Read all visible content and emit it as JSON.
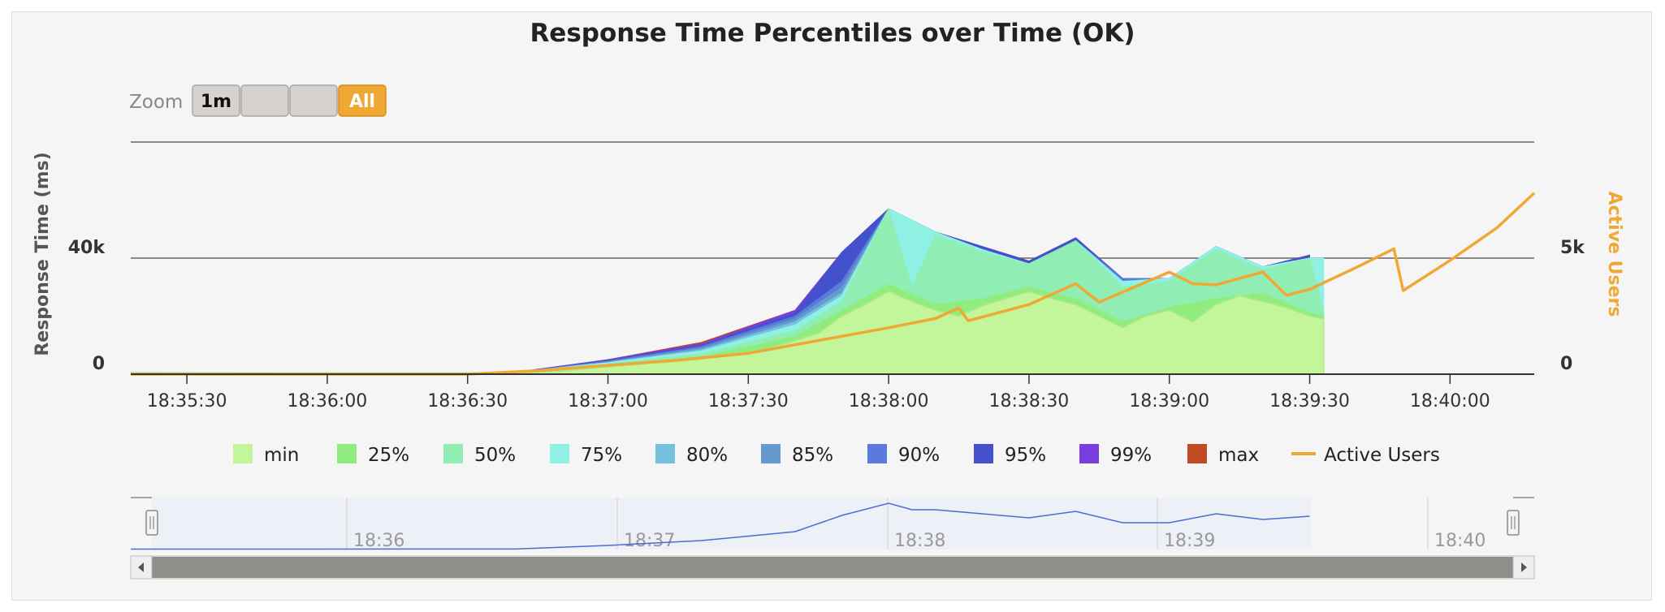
{
  "chart_data": {
    "type": "area",
    "title": "Response Time Percentiles over Time (OK)",
    "ylabel_left": "Response Time (ms)",
    "ylabel_right": "Active Users",
    "y_left_ticks": [
      {
        "value": 0,
        "label": "0"
      },
      {
        "value": 40000,
        "label": "40k"
      }
    ],
    "y_right_ticks": [
      {
        "value": 0,
        "label": "0"
      },
      {
        "value": 5000,
        "label": "5k"
      }
    ],
    "y_left_range": [
      0,
      80000
    ],
    "y_right_range": [
      0,
      10000
    ],
    "x_range": [
      "18:35:18",
      "18:40:18"
    ],
    "x_ticks": [
      "18:35:30",
      "18:36:00",
      "18:36:30",
      "18:37:00",
      "18:37:30",
      "18:38:00",
      "18:38:30",
      "18:39:00",
      "18:39:30",
      "18:40:00"
    ],
    "grid": "horizontal",
    "legend_position": "bottom",
    "series": [
      {
        "name": "min",
        "color": "#c3f59a",
        "points": [
          [
            "18:35:18",
            300
          ],
          [
            "18:36:40",
            300
          ],
          [
            "18:36:50",
            1000
          ],
          [
            "18:37:00",
            2500
          ],
          [
            "18:37:10",
            3800
          ],
          [
            "18:37:20",
            5200
          ],
          [
            "18:37:30",
            7500
          ],
          [
            "18:37:35",
            9000
          ],
          [
            "18:37:40",
            11500
          ],
          [
            "18:37:45",
            14000
          ],
          [
            "18:37:50",
            20000
          ],
          [
            "18:37:55",
            24000
          ],
          [
            "18:38:00",
            28500
          ],
          [
            "18:38:05",
            25000
          ],
          [
            "18:38:10",
            22000
          ],
          [
            "18:38:15",
            20000
          ],
          [
            "18:38:20",
            23500
          ],
          [
            "18:38:25",
            26000
          ],
          [
            "18:38:30",
            28500
          ],
          [
            "18:38:35",
            26000
          ],
          [
            "18:38:40",
            24000
          ],
          [
            "18:38:45",
            20000
          ],
          [
            "18:38:50",
            16000
          ],
          [
            "18:38:55",
            20000
          ],
          [
            "18:39:00",
            22000
          ],
          [
            "18:39:05",
            18000
          ],
          [
            "18:39:10",
            24000
          ],
          [
            "18:39:15",
            27000
          ],
          [
            "18:39:20",
            25000
          ],
          [
            "18:39:25",
            23000
          ],
          [
            "18:39:30",
            20000
          ],
          [
            "18:39:33",
            19000
          ],
          [
            "18:39:33",
            0
          ]
        ]
      },
      {
        "name": "25%",
        "color": "#90ed7d",
        "points": [
          [
            "18:35:18",
            400
          ],
          [
            "18:36:40",
            400
          ],
          [
            "18:37:00",
            3000
          ],
          [
            "18:37:20",
            6000
          ],
          [
            "18:37:40",
            13000
          ],
          [
            "18:37:50",
            22000
          ],
          [
            "18:38:00",
            31000
          ],
          [
            "18:38:10",
            24000
          ],
          [
            "18:38:20",
            26000
          ],
          [
            "18:38:30",
            30000
          ],
          [
            "18:38:40",
            26000
          ],
          [
            "18:38:50",
            18000
          ],
          [
            "18:39:00",
            23000
          ],
          [
            "18:39:10",
            26000
          ],
          [
            "18:39:20",
            28000
          ],
          [
            "18:39:30",
            21000
          ],
          [
            "18:39:33",
            20000
          ]
        ]
      },
      {
        "name": "50%",
        "color": "#90eeb4",
        "points": [
          [
            "18:35:18",
            500
          ],
          [
            "18:36:40",
            500
          ],
          [
            "18:37:00",
            3500
          ],
          [
            "18:37:20",
            7000
          ],
          [
            "18:37:40",
            15000
          ],
          [
            "18:37:50",
            25000
          ],
          [
            "18:38:00",
            57000
          ],
          [
            "18:38:05",
            30000
          ],
          [
            "18:38:10",
            48000
          ],
          [
            "18:38:20",
            42000
          ],
          [
            "18:38:30",
            38000
          ],
          [
            "18:38:40",
            46000
          ],
          [
            "18:38:50",
            30000
          ],
          [
            "18:39:00",
            32000
          ],
          [
            "18:39:10",
            43000
          ],
          [
            "18:39:20",
            36000
          ],
          [
            "18:39:30",
            40000
          ],
          [
            "18:39:33",
            22000
          ]
        ]
      },
      {
        "name": "75%",
        "color": "#8ff0e4",
        "points": [
          [
            "18:35:18",
            500
          ],
          [
            "18:36:40",
            600
          ],
          [
            "18:37:00",
            4000
          ],
          [
            "18:37:20",
            8000
          ],
          [
            "18:37:40",
            17000
          ],
          [
            "18:37:50",
            27000
          ],
          [
            "18:38:00",
            57000
          ],
          [
            "18:38:10",
            49000
          ],
          [
            "18:38:20",
            43000
          ],
          [
            "18:38:30",
            38000
          ],
          [
            "18:38:40",
            46000
          ],
          [
            "18:38:50",
            32000
          ],
          [
            "18:39:00",
            33000
          ],
          [
            "18:39:10",
            44000
          ],
          [
            "18:39:20",
            37000
          ],
          [
            "18:39:30",
            40000
          ],
          [
            "18:39:33",
            40000
          ]
        ]
      },
      {
        "name": "80%",
        "color": "#74c0de",
        "points": [
          [
            "18:35:18",
            500
          ],
          [
            "18:36:40",
            600
          ],
          [
            "18:37:00",
            4000
          ],
          [
            "18:37:20",
            8500
          ],
          [
            "18:37:40",
            18000
          ],
          [
            "18:37:50",
            28000
          ],
          [
            "18:38:00",
            57000
          ],
          [
            "18:38:10",
            49000
          ],
          [
            "18:38:20",
            43000
          ],
          [
            "18:38:30",
            38000
          ],
          [
            "18:38:40",
            46000
          ],
          [
            "18:38:50",
            32000
          ],
          [
            "18:39:00",
            33000
          ],
          [
            "18:39:10",
            44000
          ],
          [
            "18:39:20",
            37000
          ],
          [
            "18:39:30",
            40000
          ]
        ]
      },
      {
        "name": "85%",
        "color": "#6699cc",
        "points": [
          [
            "18:35:18",
            500
          ],
          [
            "18:36:40",
            600
          ],
          [
            "18:37:00",
            4200
          ],
          [
            "18:37:20",
            9000
          ],
          [
            "18:37:40",
            19000
          ],
          [
            "18:37:50",
            30000
          ],
          [
            "18:38:00",
            57000
          ],
          [
            "18:38:10",
            49000
          ],
          [
            "18:38:20",
            43000
          ],
          [
            "18:38:30",
            38000
          ],
          [
            "18:38:40",
            46000
          ],
          [
            "18:38:50",
            32000
          ],
          [
            "18:39:00",
            33000
          ],
          [
            "18:39:10",
            44000
          ],
          [
            "18:39:20",
            37000
          ],
          [
            "18:39:30",
            40000
          ]
        ]
      },
      {
        "name": "90%",
        "color": "#5b7bdc",
        "points": [
          [
            "18:35:18",
            500
          ],
          [
            "18:36:40",
            600
          ],
          [
            "18:37:00",
            4500
          ],
          [
            "18:37:20",
            9500
          ],
          [
            "18:37:40",
            20000
          ],
          [
            "18:37:50",
            32000
          ],
          [
            "18:38:00",
            57000
          ],
          [
            "18:38:10",
            49000
          ],
          [
            "18:38:20",
            43000
          ],
          [
            "18:38:30",
            38000
          ],
          [
            "18:38:40",
            46000
          ],
          [
            "18:38:50",
            33000
          ],
          [
            "18:39:00",
            33000
          ],
          [
            "18:39:10",
            44000
          ],
          [
            "18:39:20",
            37000
          ],
          [
            "18:39:30",
            40000
          ]
        ]
      },
      {
        "name": "95%",
        "color": "#4352cc",
        "points": [
          [
            "18:35:18",
            500
          ],
          [
            "18:36:40",
            600
          ],
          [
            "18:37:00",
            4800
          ],
          [
            "18:37:20",
            10000
          ],
          [
            "18:37:40",
            21000
          ],
          [
            "18:37:50",
            42000
          ],
          [
            "18:38:00",
            57000
          ],
          [
            "18:38:10",
            49000
          ],
          [
            "18:38:20",
            44000
          ],
          [
            "18:38:30",
            39000
          ],
          [
            "18:38:40",
            47000
          ],
          [
            "18:38:50",
            33000
          ],
          [
            "18:39:00",
            33000
          ],
          [
            "18:39:10",
            44000
          ],
          [
            "18:39:20",
            37000
          ],
          [
            "18:39:30",
            41000
          ]
        ]
      },
      {
        "name": "99%",
        "color": "#7a3ee0",
        "points": [
          [
            "18:35:18",
            500
          ],
          [
            "18:36:40",
            600
          ],
          [
            "18:37:00",
            5000
          ],
          [
            "18:37:20",
            10500
          ],
          [
            "18:37:40",
            22000
          ],
          [
            "18:37:50",
            42000
          ],
          [
            "18:38:00",
            57000
          ],
          [
            "18:38:10",
            49000
          ],
          [
            "18:38:20",
            44000
          ],
          [
            "18:38:30",
            39000
          ],
          [
            "18:38:40",
            47000
          ],
          [
            "18:38:50",
            33000
          ],
          [
            "18:39:00",
            33000
          ],
          [
            "18:39:10",
            44000
          ],
          [
            "18:39:20",
            37000
          ],
          [
            "18:39:30",
            41000
          ]
        ]
      },
      {
        "name": "max",
        "color": "#bf4a24",
        "points": [
          [
            "18:35:18",
            500
          ],
          [
            "18:36:40",
            600
          ],
          [
            "18:37:00",
            5000
          ],
          [
            "18:37:20",
            11000
          ],
          [
            "18:37:40",
            22000
          ],
          [
            "18:37:50",
            42000
          ],
          [
            "18:38:00",
            57000
          ],
          [
            "18:38:05",
            49000
          ],
          [
            "18:38:10",
            49000
          ],
          [
            "18:38:20",
            44000
          ],
          [
            "18:38:30",
            39000
          ],
          [
            "18:38:40",
            47000
          ],
          [
            "18:38:50",
            33000
          ],
          [
            "18:39:00",
            33000
          ],
          [
            "18:39:10",
            44000
          ],
          [
            "18:39:20",
            37000
          ],
          [
            "18:39:30",
            41000
          ]
        ]
      },
      {
        "name": "Active Users",
        "color": "#f0a835",
        "axis": "right",
        "points": [
          [
            "18:35:18",
            0
          ],
          [
            "18:36:30",
            0
          ],
          [
            "18:36:45",
            150
          ],
          [
            "18:37:00",
            380
          ],
          [
            "18:37:15",
            600
          ],
          [
            "18:37:30",
            900
          ],
          [
            "18:37:45",
            1450
          ],
          [
            "18:38:00",
            2000
          ],
          [
            "18:38:10",
            2400
          ],
          [
            "18:38:15",
            2850
          ],
          [
            "18:38:17",
            2300
          ],
          [
            "18:38:30",
            3000
          ],
          [
            "18:38:40",
            3900
          ],
          [
            "18:38:45",
            3100
          ],
          [
            "18:39:00",
            4400
          ],
          [
            "18:39:05",
            3900
          ],
          [
            "18:39:10",
            3850
          ],
          [
            "18:39:20",
            4400
          ],
          [
            "18:39:25",
            3400
          ],
          [
            "18:39:30",
            3650
          ],
          [
            "18:39:40",
            4600
          ],
          [
            "18:39:48",
            5400
          ],
          [
            "18:39:50",
            3600
          ],
          [
            "18:40:00",
            4900
          ],
          [
            "18:40:10",
            6300
          ],
          [
            "18:40:18",
            7800
          ]
        ]
      }
    ],
    "zoom": {
      "label": "Zoom",
      "buttons": [
        {
          "label": "1m",
          "active": false
        },
        {
          "label": "",
          "active": false
        },
        {
          "label": "",
          "active": false
        },
        {
          "label": "All",
          "active": true
        }
      ]
    },
    "navigator": {
      "ticks": [
        "18:36",
        "18:37",
        "18:38",
        "18:39",
        "18:40"
      ]
    }
  }
}
